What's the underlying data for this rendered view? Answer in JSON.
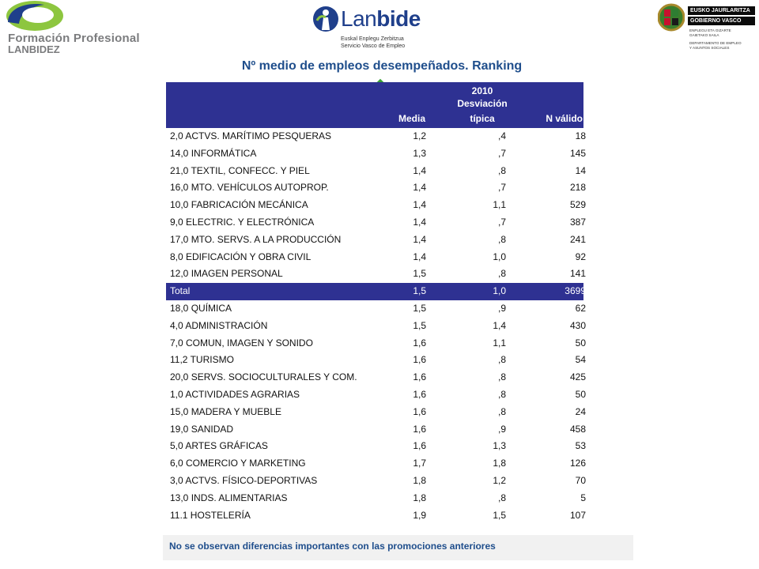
{
  "logos": {
    "left": {
      "line1": "Formación Profesional",
      "line2": "LANBIDEZ",
      "green": "#8dc63f",
      "blue": "#1f3f8b"
    },
    "center": {
      "word_a": "Lan",
      "word_b": "bide",
      "sub1": "Euskal Enplegu Zerbitzua",
      "sub2": "Servicio Vasco de Empleo"
    },
    "right": {
      "bar1": "EUSKO JAURLARITZA",
      "bar2": "GOBIERNO VASCO",
      "dept1": "ENPLEGU ETA GIZARTE",
      "dept2": "GAIETAKO SAILA",
      "dept3": "DEPARTAMENTO DE EMPLEO",
      "dept4": "Y ASUNTOS SOCIALES"
    }
  },
  "title": "Nº medio de empleos desempeñados.  Ranking",
  "table": {
    "header": {
      "year": "2010",
      "dev_line1": "Desviación",
      "dev_line2": "típica",
      "media": "Media",
      "n": "N válido"
    },
    "rows": [
      {
        "label": "2,0 ACTVS. MARÍTIMO PESQUERAS",
        "media": "1,2",
        "dev": ",4",
        "n": "18",
        "total": false
      },
      {
        "label": "14,0 INFORMÁTICA",
        "media": "1,3",
        "dev": ",7",
        "n": "145",
        "total": false
      },
      {
        "label": "21,0 TEXTIL, CONFECC. Y PIEL",
        "media": "1,4",
        "dev": ",8",
        "n": "14",
        "total": false
      },
      {
        "label": "16,0 MTO. VEHÍCULOS AUTOPROP.",
        "media": "1,4",
        "dev": ",7",
        "n": "218",
        "total": false
      },
      {
        "label": "10,0 FABRICACIÓN MECÁNICA",
        "media": "1,4",
        "dev": "1,1",
        "n": "529",
        "total": false
      },
      {
        "label": "9,0 ELECTRIC. Y ELECTRÓNICA",
        "media": "1,4",
        "dev": ",7",
        "n": "387",
        "total": false
      },
      {
        "label": "17,0 MTO. SERVS. A LA PRODUCCIÓN",
        "media": "1,4",
        "dev": ",8",
        "n": "241",
        "total": false
      },
      {
        "label": "8,0 EDIFICACIÓN Y OBRA CIVIL",
        "media": "1,4",
        "dev": "1,0",
        "n": "92",
        "total": false
      },
      {
        "label": "12,0 IMAGEN PERSONAL",
        "media": "1,5",
        "dev": ",8",
        "n": "141",
        "total": false
      },
      {
        "label": "Total",
        "media": "1,5",
        "dev": "1,0",
        "n": "3699",
        "total": true
      },
      {
        "label": "18,0 QUÍMICA",
        "media": "1,5",
        "dev": ",9",
        "n": "62",
        "total": false
      },
      {
        "label": "4,0 ADMINISTRACIÓN",
        "media": "1,5",
        "dev": "1,4",
        "n": "430",
        "total": false
      },
      {
        "label": "7,0 COMUN, IMAGEN Y SONIDO",
        "media": "1,6",
        "dev": "1,1",
        "n": "50",
        "total": false
      },
      {
        "label": "11,2 TURISMO",
        "media": "1,6",
        "dev": ",8",
        "n": "54",
        "total": false
      },
      {
        "label": "20,0 SERVS. SOCIOCULTURALES Y COM.",
        "media": "1,6",
        "dev": ",8",
        "n": "425",
        "total": false
      },
      {
        "label": "1,0 ACTIVIDADES AGRARIAS",
        "media": "1,6",
        "dev": ",8",
        "n": "50",
        "total": false
      },
      {
        "label": "15,0 MADERA Y MUEBLE",
        "media": "1,6",
        "dev": ",8",
        "n": "24",
        "total": false
      },
      {
        "label": "19,0 SANIDAD",
        "media": "1,6",
        "dev": ",9",
        "n": "458",
        "total": false
      },
      {
        "label": "5,0 ARTES GRÁFICAS",
        "media": "1,6",
        "dev": "1,3",
        "n": "53",
        "total": false
      },
      {
        "label": "6,0 COMERCIO Y MARKETING",
        "media": "1,7",
        "dev": "1,8",
        "n": "126",
        "total": false
      },
      {
        "label": "3,0 ACTVS. FÍSICO-DEPORTIVAS",
        "media": "1,8",
        "dev": "1,2",
        "n": "70",
        "total": false
      },
      {
        "label": "13,0 INDS. ALIMENTARIAS",
        "media": "1,8",
        "dev": ",8",
        "n": "5",
        "total": false
      },
      {
        "label": "11.1 HOSTELERÍA",
        "media": "1,9",
        "dev": "1,5",
        "n": "107",
        "total": false
      }
    ]
  },
  "note": "No se observan diferencias importantes con las promociones anteriores",
  "colors": {
    "header_bg": "#2e3192",
    "title": "#1f4e8c"
  }
}
